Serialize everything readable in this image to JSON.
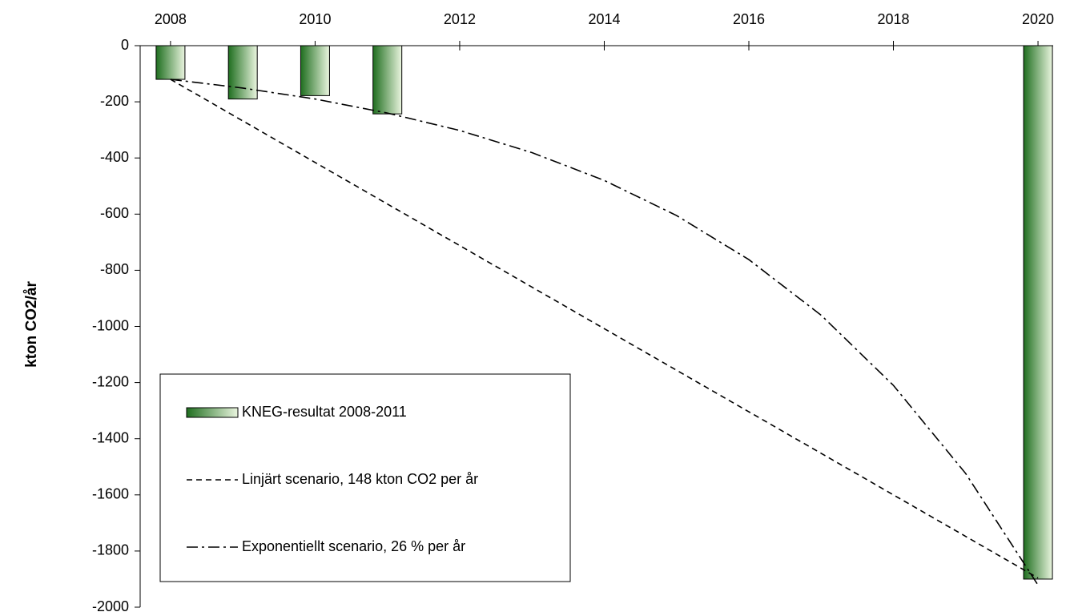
{
  "chart_data": {
    "type": "bar_line",
    "y_label": "kton CO2/år",
    "x": [
      2008,
      2009,
      2010,
      2011,
      2012,
      2013,
      2014,
      2015,
      2016,
      2017,
      2018,
      2019,
      2020
    ],
    "xlim": [
      2007.58,
      2020.21
    ],
    "xticks": [
      2008,
      2010,
      2012,
      2014,
      2016,
      2018,
      2020
    ],
    "ylim": [
      -2000,
      0
    ],
    "yticks": [
      0,
      -200,
      -400,
      -600,
      -800,
      -1000,
      -1200,
      -1400,
      -1600,
      -1800,
      -2000
    ],
    "series": [
      {
        "name": "KNEG-resultat 2008-2011",
        "kind": "bar",
        "color": "#1f6e1f",
        "color_light": "#eaf5df",
        "values": [
          -120,
          -190,
          -178,
          -243,
          null,
          null,
          null,
          null,
          null,
          null,
          null,
          null,
          -1900
        ]
      },
      {
        "name": "Linjärt scenario, 148 kton CO2 per år",
        "kind": "line",
        "color": "#000000",
        "dash": "7,5",
        "values": [
          -120,
          -268,
          -416,
          -564,
          -712,
          -860,
          -1008,
          -1156,
          -1304,
          -1452,
          -1600,
          -1748,
          -1896
        ]
      },
      {
        "name": "Exponentiellt scenario, 26 % per år",
        "kind": "line",
        "color": "#000000",
        "dash": "14,5,3,5",
        "values": [
          -120,
          -151,
          -190,
          -240,
          -302,
          -381,
          -480,
          -605,
          -762,
          -960,
          -1210,
          -1524,
          -1921
        ]
      }
    ]
  }
}
